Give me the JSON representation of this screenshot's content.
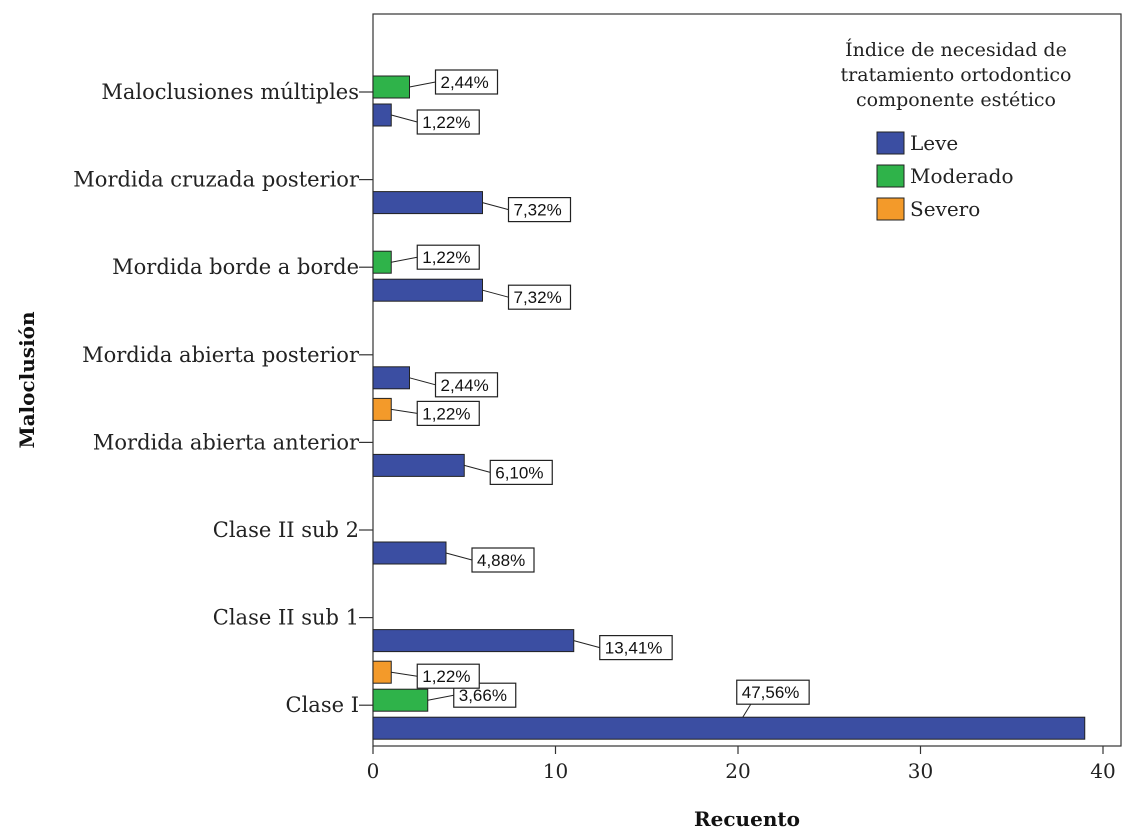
{
  "chart_data": {
    "type": "bar",
    "orientation": "horizontal",
    "xlabel": "Recuento",
    "ylabel": "Maloclusión",
    "xlim": [
      0,
      40
    ],
    "xticks": [
      0,
      10,
      20,
      30,
      40
    ],
    "grid": false,
    "legend": {
      "title": [
        "Índice de necesidad de",
        "tratamiento ortodontico",
        "componente estético"
      ],
      "placement": "top-right",
      "items": [
        {
          "name": "Leve",
          "color": "#3b4ea2"
        },
        {
          "name": "Moderado",
          "color": "#2fb34a"
        },
        {
          "name": "Severo",
          "color": "#f39a2a"
        }
      ]
    },
    "categories": [
      "Maloclusiones múltiples",
      "Mordida cruzada posterior",
      "Mordida borde a borde",
      "Mordida abierta posterior",
      "Mordida abierta anterior",
      "Clase II sub 2",
      "Clase II sub 1",
      "Clase I"
    ],
    "series": [
      {
        "name": "Leve",
        "color": "#3b4ea2",
        "values": [
          1,
          6,
          6,
          2,
          5,
          4,
          11,
          39
        ],
        "labels": [
          "1,22%",
          "7,32%",
          "7,32%",
          "2,44%",
          "6,10%",
          "4,88%",
          "13,41%",
          "47,56%"
        ]
      },
      {
        "name": "Moderado",
        "color": "#2fb34a",
        "values": [
          2,
          0,
          1,
          0,
          0,
          0,
          0,
          3
        ],
        "labels": [
          "2,44%",
          "",
          "1,22%",
          "",
          "",
          "",
          "",
          "3,66%"
        ]
      },
      {
        "name": "Severo",
        "color": "#f39a2a",
        "values": [
          0,
          0,
          0,
          0,
          1,
          0,
          0,
          1
        ],
        "labels": [
          "",
          "",
          "",
          "",
          "1,22%",
          "",
          "",
          "1,22%"
        ]
      }
    ]
  }
}
